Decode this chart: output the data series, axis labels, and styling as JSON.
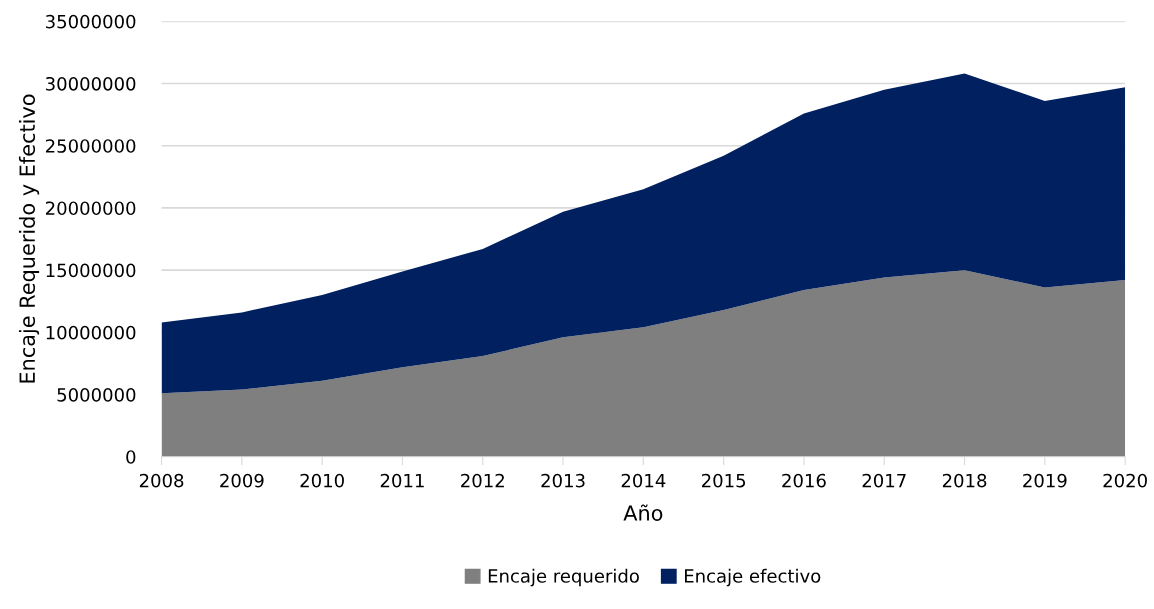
{
  "chart_data": {
    "type": "area",
    "stacked": true,
    "xlabel": "Año",
    "ylabel": "Encaje Requerido y Efectivo",
    "categories": [
      "2008",
      "2009",
      "2010",
      "2011",
      "2012",
      "2013",
      "2014",
      "2015",
      "2016",
      "2017",
      "2018",
      "2019",
      "2020"
    ],
    "series": [
      {
        "name": "Encaje requerido",
        "color": "#7f7f7f",
        "values": [
          5100000,
          5400000,
          6100000,
          7200000,
          8100000,
          9600000,
          10400000,
          11800000,
          13400000,
          14400000,
          15000000,
          13600000,
          14200000
        ]
      },
      {
        "name": "Encaje efectivo",
        "color": "#002060",
        "values": [
          5700000,
          6200000,
          6900000,
          7700000,
          8600000,
          10100000,
          11100000,
          12400000,
          14200000,
          15100000,
          15800000,
          15000000,
          15500000
        ]
      }
    ],
    "ylim": [
      0,
      35000000
    ],
    "yticks": [
      0,
      5000000,
      10000000,
      15000000,
      20000000,
      25000000,
      30000000,
      35000000
    ],
    "grid": "y",
    "legend": "bottom"
  }
}
